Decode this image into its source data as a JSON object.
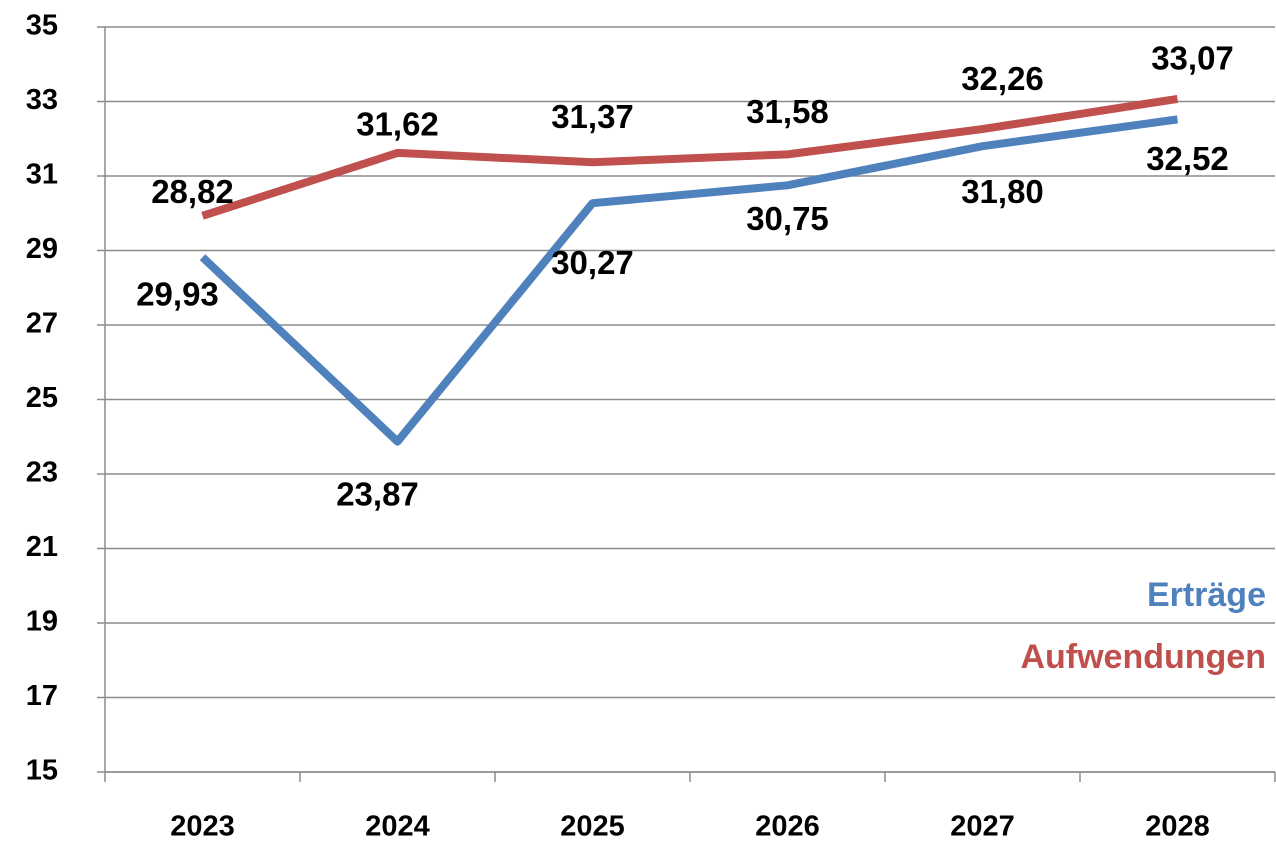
{
  "chart_data": {
    "type": "line",
    "categories": [
      "2023",
      "2024",
      "2025",
      "2026",
      "2027",
      "2028"
    ],
    "series": [
      {
        "name": "Erträge",
        "color": "#4f81bd",
        "values": [
          28.82,
          23.87,
          30.27,
          30.75,
          31.8,
          32.52
        ],
        "value_labels": [
          "28,82",
          "23,87",
          "30,27",
          "30,75",
          "31,80",
          "32,52"
        ]
      },
      {
        "name": "Aufwendungen",
        "color": "#c0504d",
        "values": [
          29.93,
          31.62,
          31.37,
          31.58,
          32.26,
          33.07
        ],
        "value_labels": [
          "29,93",
          "31,62",
          "31,37",
          "31,58",
          "32,26",
          "33,07"
        ]
      }
    ],
    "ylim": [
      15,
      35
    ],
    "yticks": [
      15,
      17,
      19,
      21,
      23,
      25,
      27,
      29,
      31,
      33,
      35
    ],
    "grid": true,
    "legend": "lower right"
  }
}
